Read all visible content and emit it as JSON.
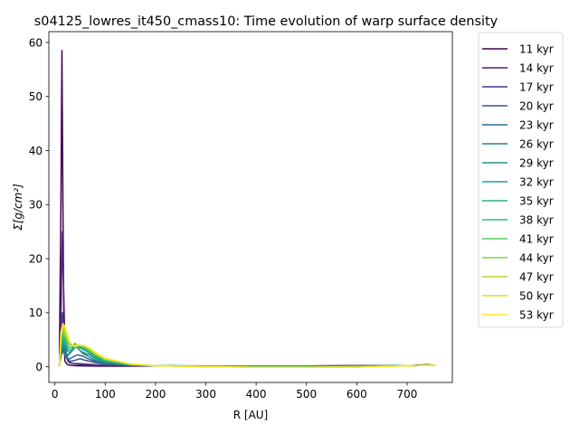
{
  "chart_data": {
    "type": "line",
    "title": "s04125_lowres_it450_cmass10: Time evolution of warp surface density",
    "xlabel": "R [AU]",
    "ylabel": "Σ[g/cm²]",
    "xlim": [
      -12,
      790
    ],
    "ylim": [
      -2.9,
      62
    ],
    "xticks": [
      0,
      100,
      200,
      300,
      400,
      500,
      600,
      700
    ],
    "yticks": [
      0,
      10,
      20,
      30,
      40,
      50,
      60
    ],
    "grid": false,
    "legend_position": "outside-right",
    "colormap": "viridis",
    "series": [
      {
        "name": "11 kyr",
        "color": "#440154",
        "x": [
          9,
          12,
          14,
          16,
          18,
          20,
          25,
          30,
          40,
          60,
          100,
          150,
          200,
          300,
          400,
          500,
          600,
          700,
          720,
          740,
          755
        ],
        "y": [
          2.5,
          30,
          58.5,
          30,
          5,
          1.0,
          0.4,
          0.3,
          0.2,
          0.15,
          0.1,
          0.1,
          0.15,
          0.15,
          0.15,
          0.15,
          0.2,
          0.2,
          0.3,
          0.4,
          0.3
        ]
      },
      {
        "name": "14 kyr",
        "color": "#482071",
        "x": [
          9,
          12,
          15,
          18,
          20,
          25,
          30,
          40,
          60,
          100,
          150,
          200,
          300,
          400,
          500,
          600,
          700,
          730,
          755
        ],
        "y": [
          0.5,
          10,
          25,
          12,
          4,
          1.5,
          0.8,
          0.5,
          0.3,
          0.2,
          0.15,
          0.15,
          0.15,
          0.15,
          0.15,
          0.2,
          0.2,
          0.3,
          0.3
        ]
      },
      {
        "name": "17 kyr",
        "color": "#433d84",
        "x": [
          9,
          12,
          15,
          18,
          22,
          26,
          30,
          40,
          50,
          60,
          80,
          100,
          150,
          200,
          300,
          400,
          500,
          600,
          700,
          755
        ],
        "y": [
          0.3,
          4,
          10,
          6,
          2,
          1.0,
          0.7,
          0.6,
          0.6,
          0.5,
          0.4,
          0.3,
          0.2,
          0.15,
          0.15,
          0.15,
          0.15,
          0.2,
          0.2,
          0.3
        ]
      },
      {
        "name": "20 kyr",
        "color": "#3a548c",
        "x": [
          9,
          12,
          16,
          20,
          25,
          30,
          40,
          50,
          60,
          80,
          100,
          150,
          200,
          300,
          400,
          500,
          600,
          700,
          755
        ],
        "y": [
          0.3,
          2,
          4,
          2.5,
          1.5,
          1.0,
          1.2,
          1.5,
          1.2,
          0.8,
          0.5,
          0.3,
          0.2,
          0.15,
          0.15,
          0.15,
          0.15,
          0.2,
          0.3
        ]
      },
      {
        "name": "23 kyr",
        "color": "#2f6b8e",
        "x": [
          9,
          12,
          16,
          20,
          25,
          30,
          40,
          45,
          55,
          65,
          80,
          100,
          150,
          200,
          300,
          400,
          500,
          600,
          700,
          755
        ],
        "y": [
          0.3,
          2,
          3,
          2,
          1.5,
          1.5,
          2,
          2.2,
          2,
          1.5,
          1.0,
          0.6,
          0.3,
          0.2,
          0.15,
          0.1,
          0.1,
          0.15,
          0.2,
          0.3
        ]
      },
      {
        "name": "26 kyr",
        "color": "#26818e",
        "x": [
          9,
          12,
          16,
          20,
          25,
          30,
          35,
          40,
          45,
          55,
          65,
          80,
          100,
          150,
          200,
          300,
          400,
          500,
          600,
          700,
          755
        ],
        "y": [
          0.2,
          2.5,
          3.5,
          2.5,
          2,
          2.5,
          3.5,
          4.3,
          3.5,
          2.5,
          2,
          1.2,
          0.7,
          0.3,
          0.2,
          0.1,
          0.1,
          0.1,
          0.15,
          0.2,
          0.3
        ]
      },
      {
        "name": "29 kyr",
        "color": "#1f958b",
        "x": [
          9,
          12,
          16,
          20,
          25,
          30,
          35,
          40,
          45,
          50,
          60,
          70,
          80,
          100,
          150,
          200,
          300,
          400,
          500,
          600,
          700,
          755
        ],
        "y": [
          0.2,
          3,
          4.5,
          3,
          2.2,
          2.5,
          3.2,
          3.8,
          3.5,
          3,
          2.5,
          2.2,
          1.5,
          0.8,
          0.3,
          0.2,
          0.1,
          0.1,
          0.1,
          0.1,
          0.2,
          0.3
        ]
      },
      {
        "name": "32 kyr",
        "color": "#1fa187",
        "x": [
          9,
          12,
          16,
          20,
          25,
          30,
          35,
          40,
          45,
          50,
          60,
          70,
          80,
          100,
          150,
          200,
          300,
          400,
          500,
          600,
          700,
          755
        ],
        "y": [
          0.1,
          3,
          5,
          4,
          3,
          2.5,
          3,
          3.5,
          3.8,
          3.5,
          3,
          2.5,
          1.8,
          1.0,
          0.4,
          0.2,
          0.1,
          0.05,
          0.05,
          0.05,
          0.2,
          0.3
        ]
      },
      {
        "name": "35 kyr",
        "color": "#2ab07f",
        "x": [
          9,
          12,
          16,
          20,
          25,
          30,
          40,
          45,
          50,
          60,
          70,
          80,
          100,
          150,
          200,
          300,
          400,
          500,
          600,
          700,
          755
        ],
        "y": [
          0.1,
          3.5,
          5.5,
          4.5,
          3.5,
          3,
          3.6,
          4,
          3.8,
          3.2,
          2.6,
          2,
          1.1,
          0.4,
          0.2,
          0.05,
          0,
          0,
          0,
          0.2,
          0.3
        ]
      },
      {
        "name": "38 kyr",
        "color": "#3fbc73",
        "x": [
          9,
          12,
          16,
          20,
          25,
          30,
          40,
          45,
          50,
          60,
          70,
          80,
          100,
          150,
          200,
          300,
          400,
          500,
          600,
          700,
          755
        ],
        "y": [
          0.1,
          4,
          6,
          5,
          4,
          3.5,
          3.8,
          4,
          3.9,
          3.4,
          2.8,
          2.2,
          1.2,
          0.4,
          0.2,
          0.05,
          0,
          0,
          0,
          0.2,
          0.3
        ]
      },
      {
        "name": "41 kyr",
        "color": "#5ec962",
        "x": [
          9,
          12,
          16,
          20,
          25,
          30,
          40,
          45,
          50,
          60,
          70,
          80,
          100,
          150,
          200,
          300,
          400,
          500,
          600,
          700,
          755
        ],
        "y": [
          0.1,
          4.5,
          6.5,
          5.5,
          4.5,
          4,
          4,
          4.1,
          4,
          3.6,
          3,
          2.3,
          1.3,
          0.5,
          0.2,
          0.05,
          -0.05,
          -0.05,
          0,
          0.2,
          0.3
        ]
      },
      {
        "name": "44 kyr",
        "color": "#84d44b",
        "x": [
          9,
          12,
          16,
          20,
          25,
          30,
          40,
          45,
          50,
          60,
          70,
          80,
          100,
          150,
          200,
          300,
          400,
          500,
          600,
          700,
          755
        ],
        "y": [
          0.1,
          5,
          7,
          6,
          5,
          4.2,
          4,
          4.1,
          4,
          3.7,
          3.1,
          2.4,
          1.4,
          0.5,
          0.2,
          0.05,
          -0.05,
          -0.05,
          0,
          0.2,
          0.3
        ]
      },
      {
        "name": "47 kyr",
        "color": "#addc30",
        "x": [
          9,
          12,
          16,
          20,
          25,
          30,
          40,
          45,
          50,
          60,
          70,
          80,
          100,
          150,
          200,
          300,
          400,
          500,
          600,
          700,
          755
        ],
        "y": [
          0.1,
          5.5,
          7.5,
          6.5,
          5.2,
          4.3,
          3.9,
          4.1,
          4,
          3.8,
          3.2,
          2.5,
          1.5,
          0.5,
          0.2,
          0.05,
          -0.1,
          -0.1,
          -0.05,
          0.2,
          0.3
        ]
      },
      {
        "name": "50 kyr",
        "color": "#d8e219",
        "x": [
          9,
          12,
          16,
          20,
          25,
          30,
          40,
          45,
          50,
          60,
          70,
          80,
          100,
          150,
          200,
          300,
          400,
          500,
          600,
          700,
          755
        ],
        "y": [
          0.1,
          6,
          7.8,
          7,
          5.5,
          4.4,
          3.8,
          4,
          4,
          3.8,
          3.3,
          2.6,
          1.5,
          0.5,
          0.2,
          0.05,
          -0.1,
          -0.1,
          -0.05,
          0.2,
          0.3
        ]
      },
      {
        "name": "53 kyr",
        "color": "#fde725",
        "x": [
          9,
          12,
          16,
          20,
          25,
          30,
          40,
          45,
          50,
          60,
          70,
          80,
          100,
          150,
          200,
          300,
          400,
          500,
          600,
          700,
          755
        ],
        "y": [
          0.1,
          6.5,
          8,
          7.5,
          6,
          4.5,
          3.7,
          3.9,
          4,
          3.9,
          3.4,
          2.7,
          1.6,
          0.5,
          0.2,
          0.05,
          -0.1,
          -0.1,
          -0.05,
          0.2,
          0.3
        ]
      }
    ]
  }
}
